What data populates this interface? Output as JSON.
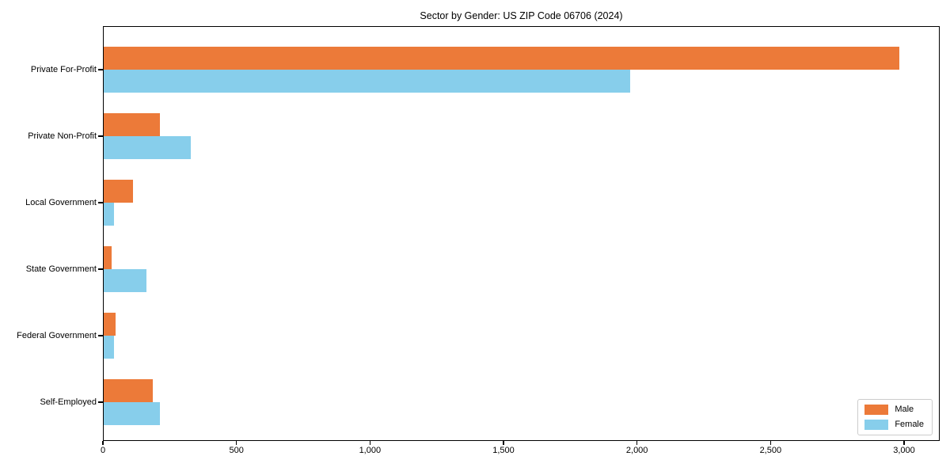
{
  "chart_data": {
    "type": "bar",
    "orientation": "horizontal",
    "title": "Sector by Gender: US ZIP Code 06706 (2024)",
    "categories": [
      "Private For-Profit",
      "Private Non-Profit",
      "Local Government",
      "State Government",
      "Federal Government",
      "Self-Employed"
    ],
    "series": [
      {
        "name": "Male",
        "color": "#ec7a39",
        "values": [
          2980,
          210,
          110,
          30,
          45,
          185
        ]
      },
      {
        "name": "Female",
        "color": "#87ceeb",
        "values": [
          1970,
          325,
          40,
          160,
          40,
          210
        ]
      }
    ],
    "xlabel": "",
    "ylabel": "",
    "xlim": [
      0,
      3133
    ],
    "x_ticks": [
      0,
      500,
      1000,
      1500,
      2000,
      2500,
      3000
    ],
    "x_tick_labels": [
      "0",
      "500",
      "1,000",
      "1,500",
      "2,000",
      "2,500",
      "3,000"
    ],
    "legend_position": "lower right",
    "grid": false,
    "axis_color": "#000000",
    "background_color": "#ffffff"
  }
}
